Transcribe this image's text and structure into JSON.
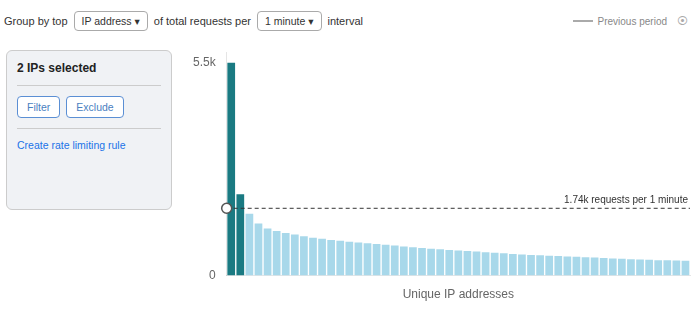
{
  "chart_data": {
    "type": "bar",
    "title": "Group by top",
    "x_label": "Unique IP addresses",
    "categories": [
      null,
      null,
      null,
      null,
      null,
      null,
      null,
      null,
      null,
      null,
      null,
      null,
      null,
      null,
      null,
      null,
      null,
      null,
      null,
      null,
      null,
      null,
      null,
      null,
      null,
      null,
      null,
      null,
      null,
      null,
      null,
      null,
      null,
      null,
      null,
      null,
      null,
      null,
      null,
      null,
      null,
      null,
      null,
      null,
      null,
      null,
      null,
      null,
      null,
      null,
      null
    ],
    "values": [
      5500,
      2100,
      1600,
      1350,
      1220,
      1150,
      1100,
      1060,
      1020,
      980,
      950,
      920,
      900,
      875,
      855,
      835,
      815,
      795,
      775,
      755,
      735,
      715,
      695,
      680,
      665,
      650,
      635,
      620,
      605,
      590,
      575,
      560,
      545,
      535,
      525,
      515,
      505,
      495,
      485,
      475,
      465,
      455,
      445,
      435,
      425,
      415,
      408,
      400,
      395,
      390,
      385
    ],
    "colors": [
      "#1a7a82",
      "#1a7a82",
      "#a8d8ea",
      "#a8d8ea",
      "#a8d8ea",
      "#a8d8ea",
      "#a8d8ea",
      "#a8d8ea",
      "#a8d8ea",
      "#a8d8ea",
      "#a8d8ea",
      "#a8d8ea",
      "#a8d8ea",
      "#a8d8ea",
      "#a8d8ea",
      "#a8d8ea",
      "#a8d8ea",
      "#a8d8ea",
      "#a8d8ea",
      "#a8d8ea",
      "#a8d8ea",
      "#a8d8ea",
      "#a8d8ea",
      "#a8d8ea",
      "#a8d8ea",
      "#a8d8ea",
      "#a8d8ea",
      "#a8d8ea",
      "#a8d8ea",
      "#a8d8ea",
      "#a8d8ea",
      "#a8d8ea",
      "#a8d8ea",
      "#a8d8ea",
      "#a8d8ea",
      "#a8d8ea",
      "#a8d8ea",
      "#a8d8ea",
      "#a8d8ea",
      "#a8d8ea",
      "#a8d8ea",
      "#a8d8ea",
      "#a8d8ea",
      "#a8d8ea",
      "#a8d8ea",
      "#a8d8ea",
      "#a8d8ea",
      "#a8d8ea",
      "#a8d8ea",
      "#a8d8ea",
      "#a8d8ea"
    ],
    "ylim": [
      0,
      5775
    ],
    "yticks": [
      0,
      {
        "value": 5500,
        "label": "5.5k"
      }
    ],
    "grid": false,
    "tick_labels": "y",
    "annotations": [
      {
        "text": "IP address ▾"
      },
      {
        "text": "of total requests per"
      },
      {
        "text": "1 minute ▾"
      },
      {
        "text": "interval"
      },
      {
        "text": "Previous period"
      },
      {
        "text": "⦿"
      },
      {
        "text": "2 IPs selected"
      },
      {
        "text": "Filter"
      },
      {
        "text": "Exclude"
      },
      {
        "text": "Create rate limiting rule"
      },
      {
        "y": 1740,
        "text": "1.74k requests per 1 minute",
        "color": "#333333",
        "line_style": "dashed"
      }
    ]
  }
}
